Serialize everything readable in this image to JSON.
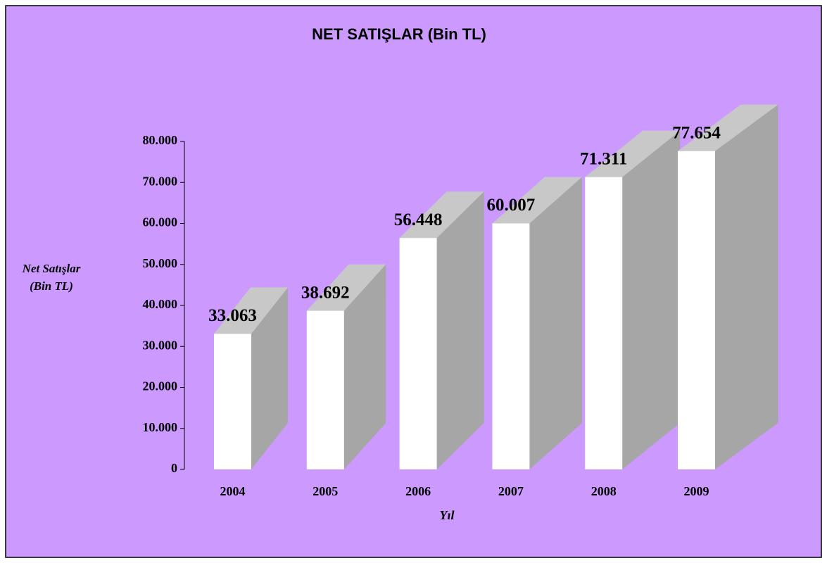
{
  "chart_data": {
    "type": "bar3d",
    "title": "NET SATIŞLAR (Bin TL)",
    "x_label": "Yıl",
    "y_label": [
      "Net Satışlar",
      "(Bin TL)"
    ],
    "categories": [
      "2004",
      "2005",
      "2006",
      "2007",
      "2008",
      "2009"
    ],
    "values": [
      33063,
      38692,
      56448,
      60007,
      71311,
      77654
    ],
    "value_labels": [
      "33.063",
      "38.692",
      "56.448",
      "60.007",
      "71.311",
      "77.654"
    ],
    "color": "#ffffff",
    "ylim": [
      0,
      80000
    ],
    "yticks": [
      0,
      {
        "value": 10000,
        "label": "10.000"
      },
      {
        "value": 20000,
        "label": "20.000"
      },
      {
        "value": 30000,
        "label": "30.000"
      },
      {
        "value": 40000,
        "label": "40.000"
      },
      {
        "value": 50000,
        "label": "50.000"
      },
      {
        "value": 60000,
        "label": "60.000"
      },
      {
        "value": 70000,
        "label": "70.000"
      },
      {
        "value": 80000,
        "label": "80.000"
      }
    ],
    "grid": false
  }
}
